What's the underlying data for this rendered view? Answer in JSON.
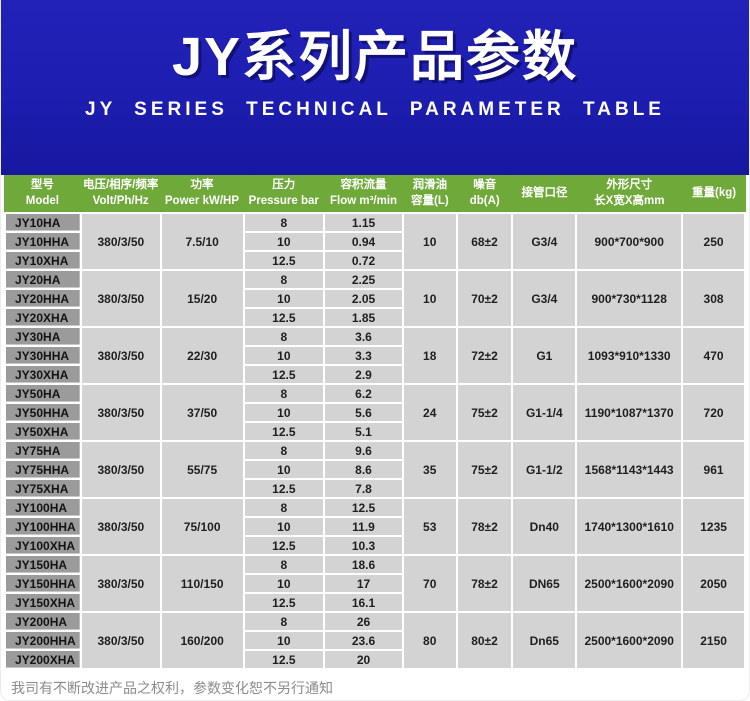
{
  "page": {
    "title": "JY系列产品参数",
    "subtitle": "JY SERIES TECHNICAL PARAMETER TABLE",
    "footer_note": "我司有不断改进产品之权利，参数变化恕不另行通知"
  },
  "colors": {
    "banner_blue": "#1d1db0",
    "header_green": "#6fa93a",
    "model_cell_gray": "#9b9b9b",
    "data_cell_gray": "#d3d3d3",
    "footer_text_gray": "#8c8c8c"
  },
  "table": {
    "headers": [
      {
        "line1": "型号",
        "line2": "Model"
      },
      {
        "line1": "电压/相序/频率",
        "line2": "Volt/Ph/Hz"
      },
      {
        "line1": "功率",
        "line2": "Power kW/HP"
      },
      {
        "line1": "压力",
        "line2": "Pressure bar"
      },
      {
        "line1": "容积流量",
        "line2": "Flow m³/min"
      },
      {
        "line1": "润滑油",
        "line2": "容量(L)"
      },
      {
        "line1": "噪音",
        "line2": "db(A)"
      },
      {
        "line1": "接管口径",
        "line2": ""
      },
      {
        "line1": "外形尺寸",
        "line2": "长X宽X高mm"
      },
      {
        "line1": "重量(kg)",
        "line2": ""
      }
    ],
    "groups": [
      {
        "models": [
          "JY10HA",
          "JY10HHA",
          "JY10XHA"
        ],
        "volt": "380/3/50",
        "power": "7.5/10",
        "pressure": [
          "8",
          "10",
          "12.5"
        ],
        "flow": [
          "1.15",
          "0.94",
          "0.72"
        ],
        "oil": "10",
        "noise": "68±2",
        "pipe": "G3/4",
        "dims": "900*700*900",
        "weight": "250"
      },
      {
        "models": [
          "JY20HA",
          "JY20HHA",
          "JY20XHA"
        ],
        "volt": "380/3/50",
        "power": "15/20",
        "pressure": [
          "8",
          "10",
          "12.5"
        ],
        "flow": [
          "2.25",
          "2.05",
          "1.85"
        ],
        "oil": "10",
        "noise": "70±2",
        "pipe": "G3/4",
        "dims": "900*730*1128",
        "weight": "308"
      },
      {
        "models": [
          "JY30HA",
          "JY30HHA",
          "JY30XHA"
        ],
        "volt": "380/3/50",
        "power": "22/30",
        "pressure": [
          "8",
          "10",
          "12.5"
        ],
        "flow": [
          "3.6",
          "3.3",
          "2.9"
        ],
        "oil": "18",
        "noise": "72±2",
        "pipe": "G1",
        "dims": "1093*910*1330",
        "weight": "470"
      },
      {
        "models": [
          "JY50HA",
          "JY50HHA",
          "JY50XHA"
        ],
        "volt": "380/3/50",
        "power": "37/50",
        "pressure": [
          "8",
          "10",
          "12.5"
        ],
        "flow": [
          "6.2",
          "5.6",
          "5.1"
        ],
        "oil": "24",
        "noise": "75±2",
        "pipe": "G1-1/4",
        "dims": "1190*1087*1370",
        "weight": "720"
      },
      {
        "models": [
          "JY75HA",
          "JY75HHA",
          "JY75XHA"
        ],
        "volt": "380/3/50",
        "power": "55/75",
        "pressure": [
          "8",
          "10",
          "12.5"
        ],
        "flow": [
          "9.6",
          "8.6",
          "7.8"
        ],
        "oil": "35",
        "noise": "75±2",
        "pipe": "G1-1/2",
        "dims": "1568*1143*1443",
        "weight": "961"
      },
      {
        "models": [
          "JY100HA",
          "JY100HHA",
          "JY100XHA"
        ],
        "volt": "380/3/50",
        "power": "75/100",
        "pressure": [
          "8",
          "10",
          "12.5"
        ],
        "flow": [
          "12.5",
          "11.9",
          "10.3"
        ],
        "oil": "53",
        "noise": "78±2",
        "pipe": "Dn40",
        "dims": "1740*1300*1610",
        "weight": "1235"
      },
      {
        "models": [
          "JY150HA",
          "JY150HHA",
          "JY150XHA"
        ],
        "volt": "380/3/50",
        "power": "110/150",
        "pressure": [
          "8",
          "10",
          "12.5"
        ],
        "flow": [
          "18.6",
          "17",
          "16.1"
        ],
        "oil": "70",
        "noise": "78±2",
        "pipe": "DN65",
        "dims": "2500*1600*2090",
        "weight": "2050"
      },
      {
        "models": [
          "JY200HA",
          "JY200HHA",
          "JY200XHA"
        ],
        "volt": "380/3/50",
        "power": "160/200",
        "pressure": [
          "8",
          "10",
          "12.5"
        ],
        "flow": [
          "26",
          "23.6",
          "20"
        ],
        "oil": "80",
        "noise": "80±2",
        "pipe": "Dn65",
        "dims": "2500*1600*2090",
        "weight": "2150"
      }
    ]
  }
}
